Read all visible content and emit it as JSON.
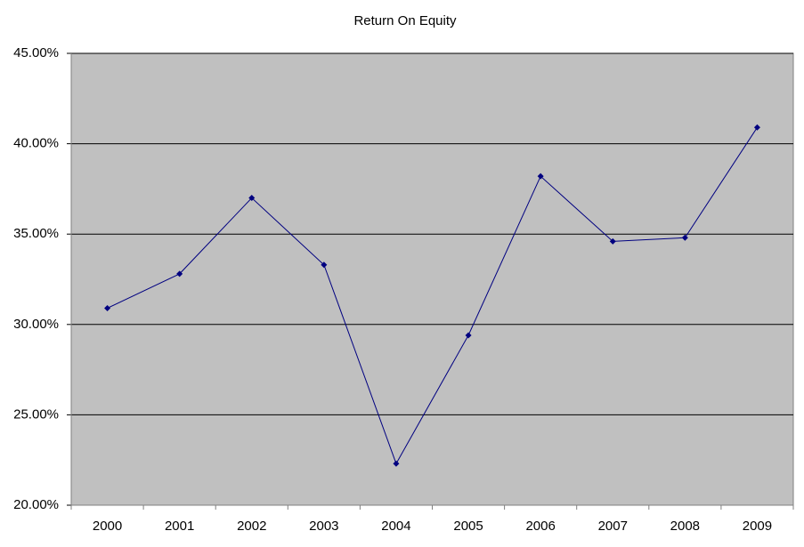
{
  "chart_data": {
    "type": "line",
    "title": "Return On Equity",
    "categories": [
      "2000",
      "2001",
      "2002",
      "2003",
      "2004",
      "2005",
      "2006",
      "2007",
      "2008",
      "2009"
    ],
    "values": [
      30.9,
      32.8,
      37.0,
      33.3,
      22.3,
      29.4,
      38.2,
      34.6,
      34.8,
      40.9
    ],
    "color": "#000080",
    "ylim": [
      20,
      45
    ],
    "yticks": [
      {
        "value": 20,
        "label": "20.00%"
      },
      {
        "value": 25,
        "label": "25.00%"
      },
      {
        "value": 30,
        "label": "30.00%"
      },
      {
        "value": 35,
        "label": "35.00%"
      },
      {
        "value": 40,
        "label": "40.00%"
      },
      {
        "value": 45,
        "label": "45.00%"
      }
    ],
    "grid": true
  }
}
